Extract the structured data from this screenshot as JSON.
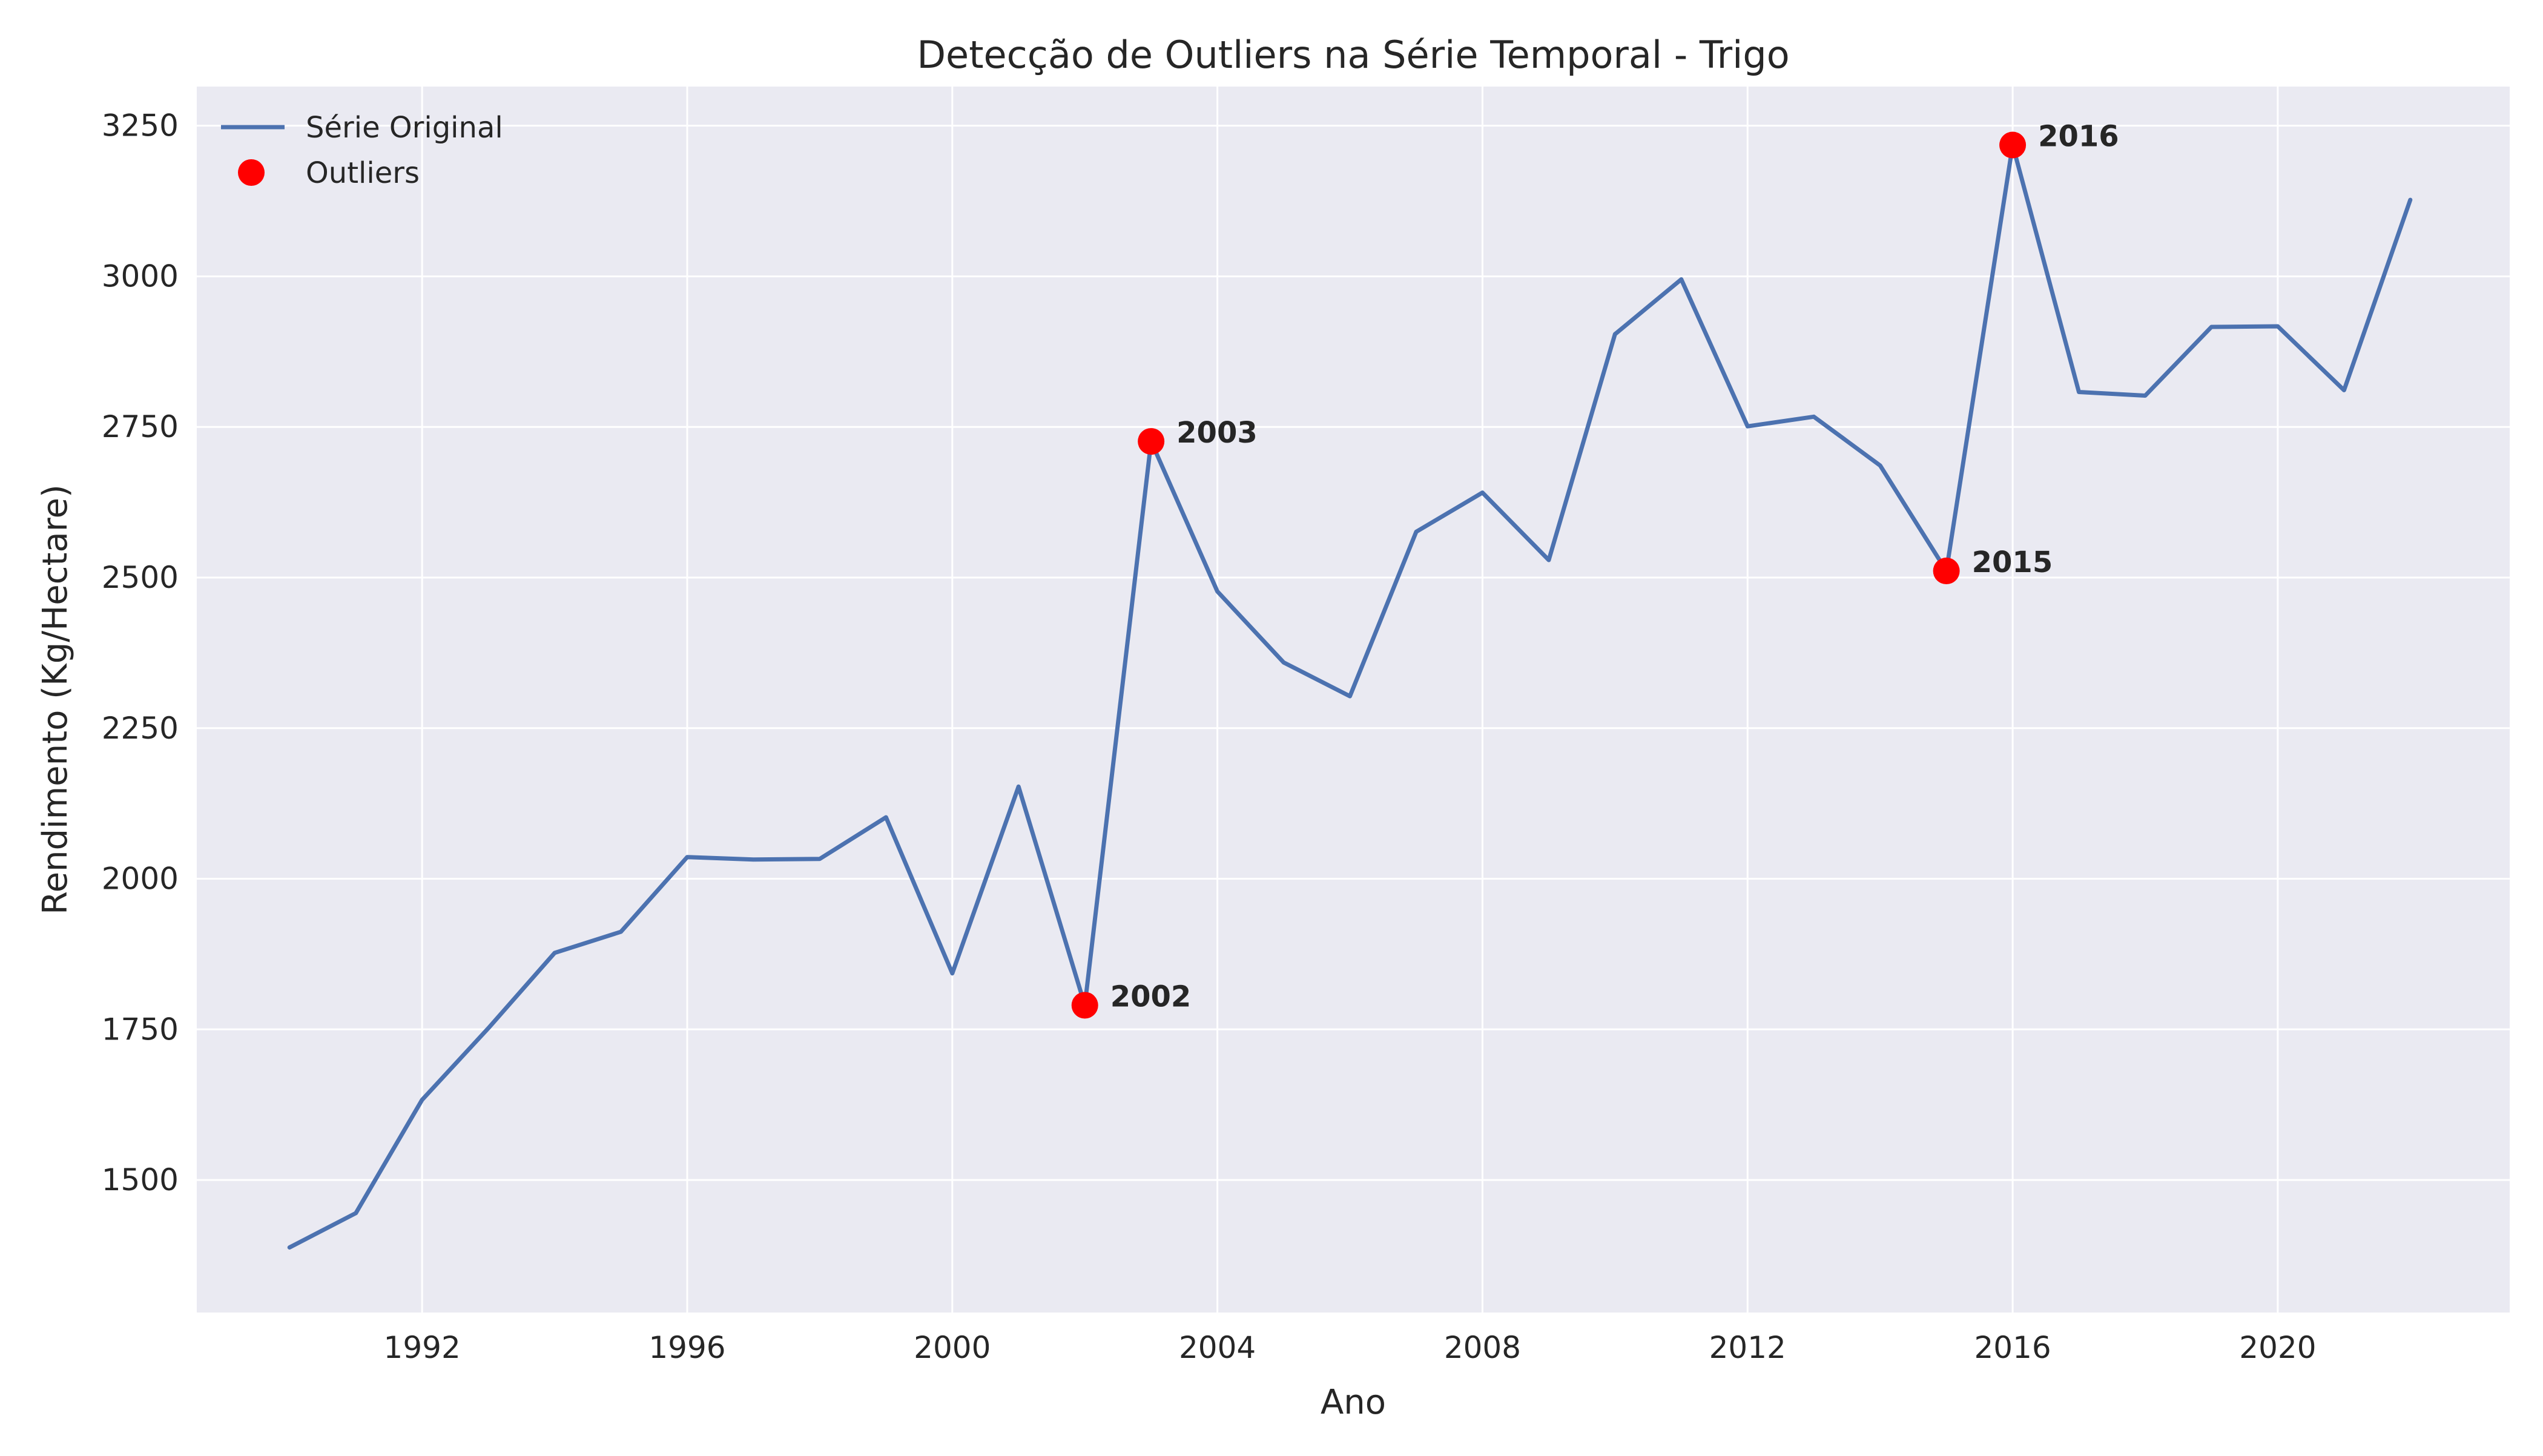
{
  "chart_data": {
    "type": "line",
    "title": "Detecção de Outliers na Série Temporal - Trigo",
    "xlabel": "Ano",
    "ylabel": "Rendimento (Kg/Hectare)",
    "xlim": [
      1988.6,
      2023.5
    ],
    "ylim": [
      1280,
      3315
    ],
    "xticks": [
      1992,
      1996,
      2000,
      2004,
      2008,
      2012,
      2016,
      2020
    ],
    "yticks": [
      1500,
      1750,
      2000,
      2250,
      2500,
      2750,
      3000,
      3250
    ],
    "grid": true,
    "legend_position": "top-left",
    "colors": {
      "line": "#4c72b0",
      "outlier": "#ff0000",
      "plot_bg": "#eaeaf2",
      "grid": "#ffffff"
    },
    "series": [
      {
        "name": "Série Original",
        "type": "line",
        "x": [
          1990,
          1991,
          1992,
          1993,
          1994,
          1995,
          1996,
          1997,
          1998,
          1999,
          2000,
          2001,
          2002,
          2003,
          2004,
          2005,
          2006,
          2007,
          2008,
          2009,
          2010,
          2011,
          2012,
          2013,
          2014,
          2015,
          2016,
          2017,
          2018,
          2019,
          2020,
          2021,
          2022
        ],
        "y": [
          1388,
          1445,
          1633,
          1752,
          1877,
          1912,
          2036,
          2032,
          2033,
          2102,
          1843,
          2153,
          1790,
          2726,
          2477,
          2359,
          2303,
          2576,
          2641,
          2529,
          2904,
          2995,
          2751,
          2767,
          2686,
          2511,
          3218,
          2808,
          2802,
          2916,
          2917,
          2811,
          3127
        ]
      },
      {
        "name": "Outliers",
        "type": "scatter",
        "x": [
          2002,
          2003,
          2015,
          2016
        ],
        "y": [
          1790,
          2726,
          2511,
          3218
        ],
        "labels": [
          "2002",
          "2003",
          "2015",
          "2016"
        ]
      }
    ]
  }
}
